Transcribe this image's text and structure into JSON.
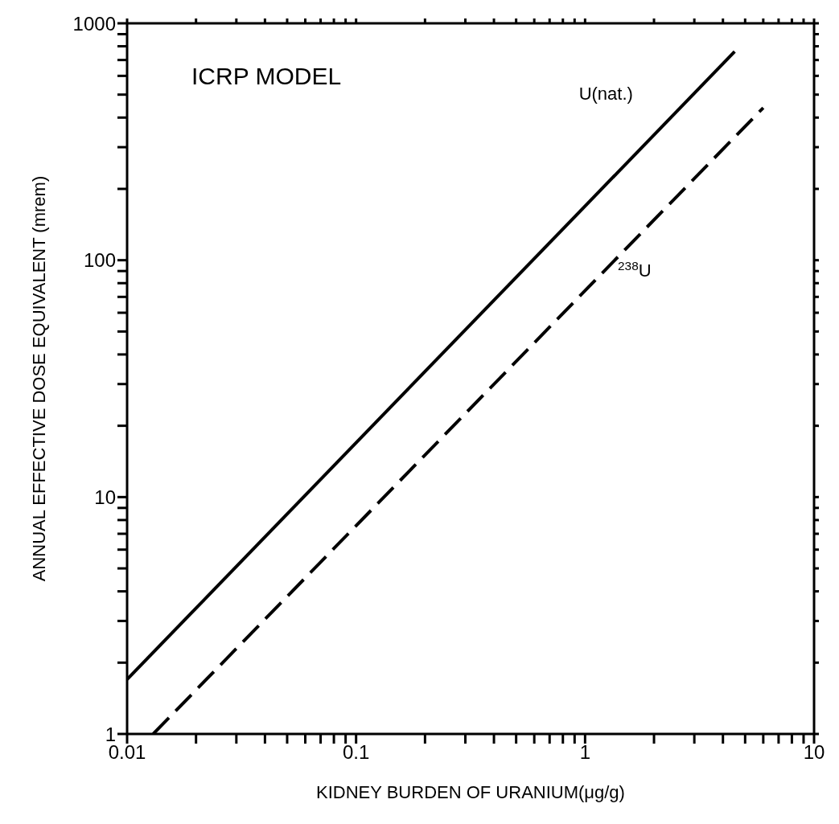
{
  "chart_data": {
    "type": "line",
    "xlabel": "KIDNEY BURDEN OF URANIUM(μg/g)",
    "ylabel": "ANNUAL EFFECTIVE DOSE EQUIVALENT (mrem)",
    "annotations": [
      "ICRP MODEL"
    ],
    "log": "xy",
    "grid": false,
    "marker": "none",
    "xlim": [
      0.01,
      10
    ],
    "ylim": [
      1,
      1000
    ],
    "xticks": [
      0.01,
      {
        "value": 0.02,
        "label": null
      },
      {
        "value": 0.03,
        "label": null
      },
      {
        "value": 0.04,
        "label": null
      },
      {
        "value": 0.05,
        "label": null
      },
      {
        "value": 0.06,
        "label": null
      },
      {
        "value": 0.07,
        "label": null
      },
      {
        "value": 0.08,
        "label": null
      },
      {
        "value": 0.09,
        "label": null
      },
      0.1,
      {
        "value": 0.2,
        "label": null
      },
      {
        "value": 0.3,
        "label": null
      },
      {
        "value": 0.4,
        "label": null
      },
      {
        "value": 0.5,
        "label": null
      },
      {
        "value": 0.6,
        "label": null
      },
      {
        "value": 0.7,
        "label": null
      },
      {
        "value": 0.8,
        "label": null
      },
      {
        "value": 0.9,
        "label": null
      },
      1,
      {
        "value": 2,
        "label": null
      },
      {
        "value": 3,
        "label": null
      },
      {
        "value": 4,
        "label": null
      },
      {
        "value": 5,
        "label": null
      },
      {
        "value": 6,
        "label": null
      },
      {
        "value": 7,
        "label": null
      },
      {
        "value": 8,
        "label": null
      },
      {
        "value": 9,
        "label": null
      },
      10
    ],
    "yticks": [
      1,
      {
        "value": 2,
        "label": null
      },
      {
        "value": 3,
        "label": null
      },
      {
        "value": 4,
        "label": null
      },
      {
        "value": 5,
        "label": null
      },
      {
        "value": 6,
        "label": null
      },
      {
        "value": 7,
        "label": null
      },
      {
        "value": 8,
        "label": null
      },
      {
        "value": 9,
        "label": null
      },
      10,
      {
        "value": 20,
        "label": null
      },
      {
        "value": 30,
        "label": null
      },
      {
        "value": 40,
        "label": null
      },
      {
        "value": 50,
        "label": null
      },
      {
        "value": 60,
        "label": null
      },
      {
        "value": 70,
        "label": null
      },
      {
        "value": 80,
        "label": null
      },
      {
        "value": 90,
        "label": null
      },
      100,
      {
        "value": 200,
        "label": null
      },
      {
        "value": 300,
        "label": null
      },
      {
        "value": 400,
        "label": null
      },
      {
        "value": 500,
        "label": null
      },
      {
        "value": 600,
        "label": null
      },
      {
        "value": 700,
        "label": null
      },
      {
        "value": 800,
        "label": null
      },
      {
        "value": 900,
        "label": null
      },
      1000
    ],
    "series": [
      {
        "name": "U(nat.)",
        "color": "#000000",
        "line_style": "solid",
        "x": [
          0.01,
          4.5
        ],
        "values": [
          1.7,
          760
        ]
      },
      {
        "name": "$^{238}$U",
        "color": "#000000",
        "line_style": "dashed",
        "x": [
          0.013,
          6
        ],
        "values": [
          1,
          440
        ]
      }
    ]
  }
}
